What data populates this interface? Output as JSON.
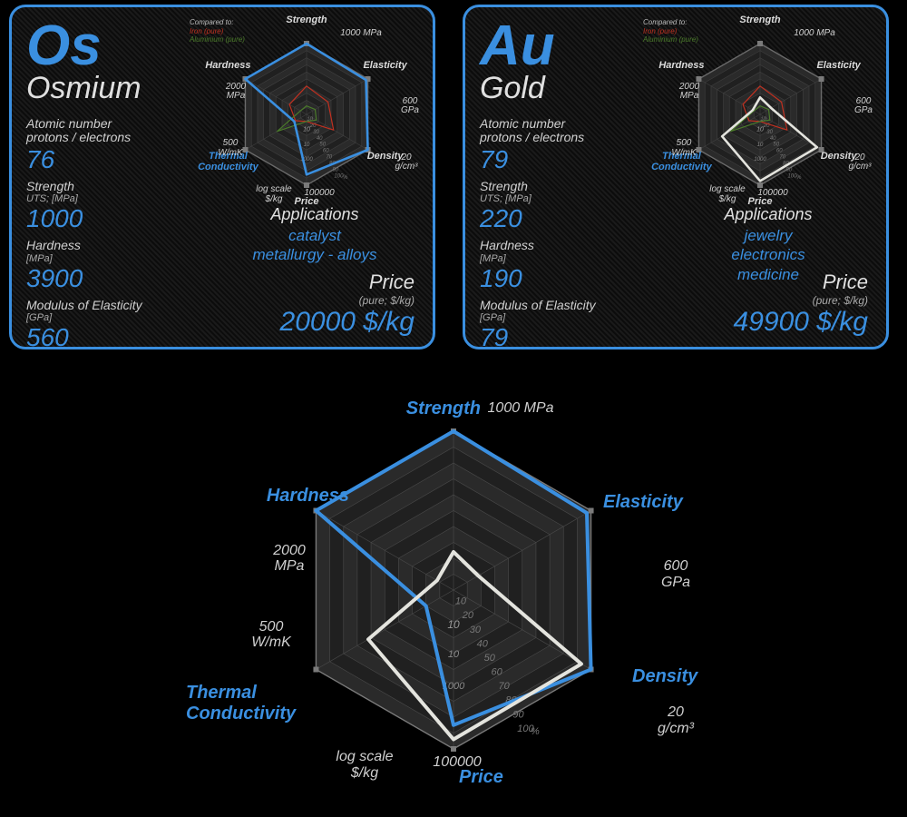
{
  "colors": {
    "accent_blue": "#3a8fe0",
    "accent_gold": "#cfcfc9",
    "grid": "#6a6a6a",
    "grid_dark": "#404040",
    "compare_iron": "#c03020",
    "compare_aluminium": "#4a7a2a",
    "white_axis": "#dadada",
    "text_light": "#d0d0d0"
  },
  "radar": {
    "axes_count": 6,
    "scale_ticks": [
      10,
      20,
      30,
      40,
      50,
      60,
      70,
      80,
      90,
      100
    ],
    "axes": [
      {
        "name": "Strength",
        "outer_label": "1000 MPa"
      },
      {
        "name": "Elasticity",
        "outer_label": "600\nGPa"
      },
      {
        "name": "Density",
        "outer_label": "20\ng/cm³"
      },
      {
        "name": "Price",
        "outer_label": "100000",
        "sub_label": "log scale\n$/kg"
      },
      {
        "name": "Thermal\nConductivity",
        "outer_label": "500\nW/mK"
      },
      {
        "name": "Hardness",
        "outer_label": "2000\nMPa"
      }
    ],
    "price_ticks": [
      "10",
      "1000"
    ],
    "scale_bottom_label": "10",
    "compare_title": "Compared to:",
    "compare": [
      {
        "label": "Iron (pure)",
        "color": "#c03020",
        "values": [
          40,
          35,
          44,
          10,
          18,
          28
        ]
      },
      {
        "label": "Aluminium (pure)",
        "color": "#4a7a2a",
        "values": [
          12,
          14,
          16,
          10,
          48,
          10
        ]
      }
    ]
  },
  "elements": [
    {
      "symbol": "Os",
      "name": "Osmium",
      "stroke_color": "#3a8fe0",
      "border_color": "#3a8fe0",
      "text_color": "#3a8fe0",
      "props": [
        {
          "label": "Atomic number\nprotons / electrons",
          "unit": "",
          "value": "76"
        },
        {
          "label": "Strength",
          "unit": "UTS; [MPa]",
          "value": "1000"
        },
        {
          "label": "Hardness",
          "unit": "[MPa]",
          "value": "3900"
        },
        {
          "label": "Modulus of Elasticity",
          "unit": "[GPa]",
          "value": "560"
        }
      ],
      "applications_title": "Applications",
      "applications": [
        "catalyst",
        "metallurgy - alloys"
      ],
      "price_title": "Price",
      "price_unit": "(pure; $/kg)",
      "price_value": "20000 $/kg",
      "radar_values": [
        100,
        97,
        100,
        85,
        20,
        100
      ]
    },
    {
      "symbol": "Au",
      "name": "Gold",
      "stroke_color": "#e4e4de",
      "border_color": "#3a8fe0",
      "text_color": "#3a8fe0",
      "props": [
        {
          "label": "Atomic number\nprotons / electrons",
          "unit": "",
          "value": "79"
        },
        {
          "label": "Strength",
          "unit": "UTS; [MPa]",
          "value": "220"
        },
        {
          "label": "Hardness",
          "unit": "[MPa]",
          "value": "190"
        },
        {
          "label": "Modulus of Elasticity",
          "unit": "[GPa]",
          "value": "79"
        }
      ],
      "applications_title": "Applications",
      "applications": [
        "jewelry",
        "electronics",
        "medicine"
      ],
      "price_title": "Price",
      "price_unit": "(pure; $/kg)",
      "price_value": "49900 $/kg",
      "radar_values": [
        24,
        18,
        93,
        94,
        62,
        12
      ]
    }
  ],
  "big_chart": {
    "series": [
      {
        "name": "Osmium",
        "color": "#3a8fe0",
        "values": [
          100,
          97,
          100,
          85,
          20,
          100
        ]
      },
      {
        "name": "Gold",
        "color": "#e4e4de",
        "values": [
          24,
          18,
          93,
          94,
          62,
          12
        ]
      }
    ]
  }
}
